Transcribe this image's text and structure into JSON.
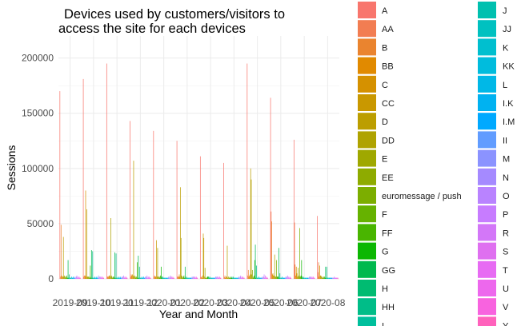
{
  "chart_data": {
    "type": "bar",
    "title_lines": [
      "Devices used by customers/visitors to",
      "access the site for each devices"
    ],
    "xlabel": "Year and Month",
    "ylabel": "Sessions",
    "ylim": [
      0,
      220000
    ],
    "yticks": [
      0,
      50000,
      100000,
      150000,
      200000
    ],
    "ytick_labels": [
      "0",
      "50000",
      "100000",
      "150000",
      "200000"
    ],
    "grid": true,
    "legend_position": "right",
    "categories": [
      "2019-09",
      "2019-10",
      "2019-11",
      "2019-12",
      "2020-01",
      "2020-02",
      "2020-03",
      "2020-04",
      "2020-05",
      "2020-06",
      "2020-07",
      "2020-08"
    ],
    "category_labels": [
      "2019-09",
      "2019-10",
      "2019-11",
      "2019-12",
      "2020-01",
      "2020-02",
      "2020-03",
      "2020-04",
      "2020-05",
      "2020-06",
      "2020-07",
      "2020-08"
    ],
    "legend_left": [
      "A",
      "AA",
      "B",
      "BB",
      "C",
      "CC",
      "D",
      "DD",
      "E",
      "EE",
      "euromessage / push",
      "F",
      "FF",
      "G",
      "GG",
      "H",
      "HH",
      "I"
    ],
    "legend_right": [
      "J",
      "JJ",
      "K",
      "KK",
      "L",
      "I.K",
      "I.M",
      "II",
      "M",
      "N",
      "O",
      "P",
      "R",
      "S",
      "T",
      "U",
      "V",
      "Y"
    ],
    "colors_left": [
      "#F8766D",
      "#F27D52",
      "#EA842F",
      "#E18A00",
      "#D59100",
      "#C99800",
      "#BC9E00",
      "#AFA300",
      "#9FA800",
      "#8EAB00",
      "#7CAE00",
      "#66B200",
      "#49B500",
      "#0CB702",
      "#00B94E",
      "#00BB71",
      "#00BD88",
      "#00BF9C"
    ],
    "colors_right": [
      "#00C0AF",
      "#00C1C0",
      "#00BFCF",
      "#00BCDD",
      "#00B8E7",
      "#00B2F1",
      "#00A9FF",
      "#619CFF",
      "#8B93FF",
      "#A58AFF",
      "#B983FF",
      "#C77CFF",
      "#D377F8",
      "#DF70F0",
      "#E76BF3",
      "#ED68ED",
      "#F863DF",
      "#FF62BC"
    ],
    "series": [
      {
        "name": "A",
        "values": [
          170000,
          181000,
          195000,
          143000,
          134000,
          125000,
          111000,
          105000,
          195000,
          164000,
          126000,
          57000
        ]
      },
      {
        "name": "AA",
        "values": [
          2000,
          2000,
          2000,
          2000,
          2000,
          2000,
          1500,
          1500,
          3000,
          61000,
          51000,
          6000
        ]
      },
      {
        "name": "B",
        "values": [
          49000,
          3000,
          2000,
          4000,
          3000,
          2000,
          2000,
          3000,
          8000,
          52000,
          13000,
          15000
        ]
      },
      {
        "name": "BB",
        "values": [
          3000,
          3000,
          2000,
          3000,
          2000,
          2000,
          1000,
          1000,
          2000,
          4000,
          3000,
          2000
        ]
      },
      {
        "name": "C",
        "values": [
          2000,
          80000,
          3000,
          4000,
          2000,
          4000,
          3000,
          2000,
          3000,
          5000,
          11000,
          12000
        ]
      },
      {
        "name": "CC",
        "values": [
          2000,
          2000,
          3000,
          3000,
          35000,
          2000,
          41000,
          2000,
          4000,
          3000,
          5000,
          3000
        ]
      },
      {
        "name": "D",
        "values": [
          38000,
          63000,
          2000,
          107000,
          2000,
          83000,
          37000,
          30000,
          100000,
          3000,
          2000,
          3000
        ]
      },
      {
        "name": "DD",
        "values": [
          2000,
          2000,
          55000,
          2000,
          28000,
          37000,
          2000,
          1000,
          90000,
          22000,
          10000,
          2000
        ]
      },
      {
        "name": "E",
        "values": [
          3000,
          2000,
          3000,
          3000,
          2000,
          3000,
          10000,
          2000,
          4000,
          2000,
          3000,
          2000
        ]
      },
      {
        "name": "EE",
        "values": [
          2000,
          2000,
          2000,
          2000,
          2000,
          2000,
          1000,
          1000,
          8000,
          2000,
          2000,
          1000
        ]
      },
      {
        "name": "euromessage / push",
        "values": [
          1000,
          1000,
          1000,
          1000,
          1000,
          1000,
          1000,
          1000,
          1000,
          17000,
          46000,
          1000
        ]
      },
      {
        "name": "F",
        "values": [
          2000,
          2000,
          2000,
          2000,
          2000,
          2000,
          1000,
          2000,
          2000,
          2000,
          2000,
          2000
        ]
      },
      {
        "name": "FF",
        "values": [
          3000,
          12000,
          2000,
          15000,
          3000,
          3000,
          2000,
          1000,
          3000,
          2000,
          3000,
          2000
        ]
      },
      {
        "name": "G",
        "values": [
          1000,
          1000,
          1000,
          1000,
          11000,
          1000,
          2000,
          1000,
          17000,
          2000,
          17000,
          1000
        ]
      },
      {
        "name": "GG",
        "values": [
          17000,
          26000,
          24000,
          21000,
          2000,
          11000,
          2000,
          2000,
          31000,
          28000,
          2000,
          11000
        ]
      },
      {
        "name": "H",
        "values": [
          1000,
          1000,
          1000,
          1000,
          1000,
          1000,
          1000,
          1000,
          1000,
          1000,
          1000,
          1000
        ]
      },
      {
        "name": "HH",
        "values": [
          4000,
          25000,
          23000,
          11000,
          2000,
          2000,
          2000,
          2000,
          12000,
          5000,
          2000,
          11000
        ]
      },
      {
        "name": "I",
        "values": [
          1000,
          1000,
          1000,
          1000,
          1000,
          1000,
          1000,
          1000,
          1000,
          1000,
          1000,
          1000
        ]
      },
      {
        "name": "J",
        "values": [
          1000,
          1000,
          1000,
          1000,
          1000,
          1000,
          1000,
          1000,
          1000,
          1000,
          1000,
          1000
        ]
      },
      {
        "name": "JJ",
        "values": [
          1000,
          1000,
          1000,
          1000,
          1000,
          1000,
          1000,
          1000,
          1000,
          1000,
          1000,
          1000
        ]
      },
      {
        "name": "K",
        "values": [
          2000,
          2000,
          2000,
          2000,
          1000,
          1000,
          1000,
          1000,
          2000,
          2000,
          1000,
          1000
        ]
      },
      {
        "name": "KK",
        "values": [
          1000,
          1000,
          1000,
          1000,
          1000,
          1000,
          1000,
          1000,
          1000,
          1000,
          1000,
          1000
        ]
      },
      {
        "name": "L",
        "values": [
          1000,
          1000,
          1000,
          1000,
          1000,
          1000,
          1000,
          1000,
          1000,
          1000,
          1000,
          1000
        ]
      },
      {
        "name": "I.K",
        "values": [
          2000,
          2000,
          2000,
          2000,
          1000,
          1000,
          1000,
          1000,
          1000,
          1000,
          1000,
          1000
        ]
      },
      {
        "name": "I.M",
        "values": [
          1000,
          1000,
          1000,
          1000,
          1000,
          1000,
          1000,
          1000,
          1000,
          1000,
          1000,
          1000
        ]
      },
      {
        "name": "II",
        "values": [
          1000,
          1000,
          1000,
          1000,
          1000,
          1000,
          1000,
          1000,
          1000,
          1000,
          1000,
          1000
        ]
      },
      {
        "name": "M",
        "values": [
          2000,
          3000,
          2000,
          2000,
          2000,
          2000,
          2000,
          2000,
          2000,
          2000,
          2000,
          1000
        ]
      },
      {
        "name": "N",
        "values": [
          1000,
          1000,
          1000,
          1000,
          1000,
          1000,
          1000,
          1000,
          1000,
          1000,
          1000,
          1000
        ]
      },
      {
        "name": "O",
        "values": [
          2000,
          2000,
          2000,
          2000,
          2000,
          2000,
          2000,
          2000,
          2000,
          2000,
          2000,
          1000
        ]
      },
      {
        "name": "P",
        "values": [
          3000,
          2000,
          3000,
          3000,
          3000,
          2000,
          2000,
          3000,
          4000,
          3000,
          2000,
          2000
        ]
      },
      {
        "name": "R",
        "values": [
          1000,
          1000,
          1000,
          1000,
          1000,
          1000,
          1000,
          1000,
          1000,
          1000,
          1000,
          1000
        ]
      },
      {
        "name": "S",
        "values": [
          2000,
          2000,
          2000,
          2000,
          2000,
          2000,
          2000,
          2000,
          3000,
          2000,
          2000,
          1000
        ]
      },
      {
        "name": "T",
        "values": [
          1000,
          1000,
          1000,
          1000,
          1000,
          1000,
          1000,
          1000,
          1000,
          1000,
          1000,
          1000
        ]
      },
      {
        "name": "U",
        "values": [
          2000,
          2000,
          2000,
          2000,
          2000,
          2000,
          2000,
          2000,
          2000,
          2000,
          2000,
          1000
        ]
      },
      {
        "name": "V",
        "values": [
          1000,
          1000,
          1000,
          1000,
          1000,
          1000,
          1000,
          1000,
          1000,
          1000,
          1000,
          1000
        ]
      },
      {
        "name": "Y",
        "values": [
          1000,
          1000,
          1000,
          1000,
          1000,
          1000,
          1000,
          1000,
          1000,
          1000,
          1000,
          1000
        ]
      }
    ]
  }
}
